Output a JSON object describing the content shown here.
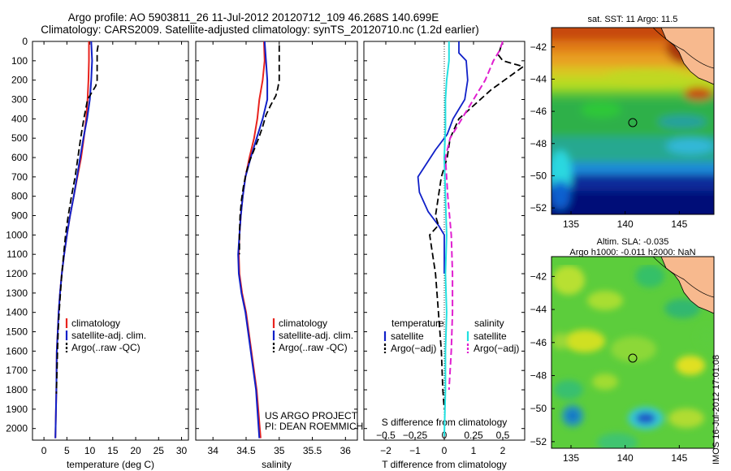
{
  "header": {
    "title_line1": "Argo profile: AO 5903811_26 11-Jul-2012 20120712_109 46.268S 140.699E",
    "title_line2": "Climatology: CARS2009. Satellite-adjusted climatology: synTS_20120710.nc (1.2d earlier)"
  },
  "watermark": "IMOS 16-Jul-2012 17:01:08",
  "colors": {
    "climatology": "#e8231e",
    "satellite": "#1020c8",
    "argo": "#000000",
    "sal_satellite": "#20e0e0",
    "sal_argo": "#e020d0"
  },
  "chart_data": [
    {
      "type": "line",
      "xlabel": "temperature (deg C)",
      "xticks": [
        0,
        5,
        10,
        15,
        20,
        25,
        30
      ],
      "xlim": [
        -2.5,
        31.5
      ],
      "ylim": [
        2060,
        0
      ],
      "yticks": [
        0,
        100,
        200,
        300,
        400,
        500,
        600,
        700,
        800,
        900,
        1000,
        1100,
        1200,
        1300,
        1400,
        1500,
        1600,
        1700,
        1800,
        1900,
        2000
      ],
      "legend": [
        "climatology",
        "satellite-adj. clim.",
        "Argo(..raw -QC)"
      ],
      "series": [
        {
          "name": "climatology",
          "x": [
            9.8,
            9.8,
            9.7,
            9.5,
            9.2,
            8.7,
            8.1,
            7.3,
            6.5,
            5.7,
            5.0,
            4.4,
            3.9,
            3.5,
            3.2,
            3.0,
            2.8,
            2.7,
            2.5
          ],
          "y": [
            0,
            100,
            200,
            300,
            400,
            500,
            600,
            700,
            800,
            900,
            1000,
            1100,
            1200,
            1300,
            1400,
            1500,
            1600,
            1800,
            2050
          ]
        },
        {
          "name": "satellite-adj. clim.",
          "x": [
            10.3,
            10.5,
            10.3,
            10.0,
            9.4,
            8.6,
            7.9,
            7.2,
            6.5,
            5.7,
            5.0,
            4.4,
            3.9,
            3.5,
            3.2,
            3.0,
            2.8,
            2.7,
            2.5
          ],
          "y": [
            0,
            100,
            200,
            300,
            400,
            500,
            600,
            700,
            800,
            900,
            1000,
            1100,
            1200,
            1300,
            1400,
            1500,
            1600,
            1800,
            2050
          ]
        },
        {
          "name": "Argo(..raw -QC)",
          "x": [
            11.8,
            11.6,
            11.6,
            11.6,
            11.6,
            11.3,
            9.5,
            8.7,
            8.0,
            7.4,
            6.8,
            6.0,
            5.3,
            4.7,
            4.3,
            3.9,
            3.6,
            3.3,
            3.1,
            2.95,
            2.85,
            2.7
          ],
          "y": [
            20,
            50,
            100,
            150,
            200,
            230,
            300,
            400,
            500,
            600,
            700,
            800,
            900,
            1000,
            1100,
            1200,
            1300,
            1400,
            1500,
            1600,
            1700,
            1820
          ]
        }
      ]
    },
    {
      "type": "line",
      "xlabel": "salinity",
      "xticks": [
        34,
        34.5,
        35,
        35.5,
        36
      ],
      "xticklabels": [
        "34",
        "34.5",
        "35",
        "35.5",
        "36"
      ],
      "xlim": [
        33.74,
        36.18
      ],
      "ylim": [
        2060,
        0
      ],
      "legend": [
        "climatology",
        "satellite-adj. clim.",
        "Argo(..raw -QC)"
      ],
      "annotation": [
        "US ARGO PROJECT",
        "PI: DEAN ROEMMICH"
      ],
      "series": [
        {
          "name": "climatology",
          "x": [
            34.77,
            34.78,
            34.75,
            34.7,
            34.67,
            34.62,
            34.55,
            34.49,
            34.45,
            34.42,
            34.4,
            34.39,
            34.4,
            34.44,
            34.5,
            34.58,
            34.66,
            34.72
          ],
          "y": [
            0,
            100,
            200,
            300,
            400,
            500,
            600,
            700,
            800,
            900,
            1000,
            1100,
            1200,
            1300,
            1400,
            1600,
            1800,
            2050
          ]
        },
        {
          "name": "satellite-adj. clim.",
          "x": [
            34.78,
            34.8,
            34.82,
            34.82,
            34.75,
            34.66,
            34.57,
            34.49,
            34.45,
            34.42,
            34.4,
            34.38,
            34.39,
            34.43,
            34.49,
            34.57,
            34.65,
            34.7
          ],
          "y": [
            0,
            100,
            200,
            300,
            400,
            500,
            600,
            700,
            800,
            900,
            1000,
            1100,
            1200,
            1300,
            1400,
            1600,
            1800,
            2050
          ]
        },
        {
          "name": "Argo(..raw -QC)",
          "x": [
            35.0,
            35.0,
            35.0,
            34.98,
            34.95,
            34.87,
            34.8,
            34.75,
            34.69,
            34.62,
            34.55,
            34.5,
            34.46,
            34.43,
            34.41,
            34.4,
            34.4
          ],
          "y": [
            20,
            100,
            200,
            240,
            280,
            330,
            380,
            440,
            500,
            560,
            620,
            680,
            750,
            820,
            900,
            1000,
            1100
          ]
        }
      ]
    },
    {
      "type": "line",
      "xlabel": "T difference from climatology",
      "xticks": [
        -2,
        -1,
        0,
        1,
        2
      ],
      "xticklabels": [
        "−2",
        "−1",
        "0",
        "1",
        "2"
      ],
      "x2label": "S difference from climatology",
      "x2ticks": [
        -0.5,
        -0.25,
        0,
        0.25,
        0.5
      ],
      "x2ticklabels": [
        "−0.5",
        "−0.25",
        "0",
        "0.25",
        "0.5"
      ],
      "xlim": [
        -2.75,
        2.75
      ],
      "ylim": [
        2060,
        0
      ],
      "legend": [
        "temperature",
        "satellite",
        "Argo(−adj)",
        "salinity",
        "satellite",
        "Argo(−adj)"
      ],
      "series": [
        {
          "name": "T satellite",
          "x": [
            0.5,
            0.5,
            0.75,
            0.8,
            0.7,
            0.5,
            0.3,
            0.1,
            -0.3,
            -0.9,
            -0.85,
            -0.55,
            -0.2,
            0,
            0,
            0
          ],
          "y": [
            0,
            60,
            100,
            200,
            300,
            350,
            400,
            480,
            560,
            700,
            780,
            880,
            950,
            1000,
            1100,
            1200
          ]
        },
        {
          "name": "T Argo(−adj)",
          "x": [
            1.95,
            1.85,
            2.0,
            2.7,
            1.6,
            0.5,
            0.2,
            0.1,
            -0.1,
            -0.2,
            -0.3,
            -0.2,
            -0.5,
            -0.4,
            -0.3,
            -0.2,
            -0.1,
            -0.05,
            0
          ],
          "y": [
            20,
            70,
            100,
            130,
            250,
            400,
            500,
            600,
            700,
            800,
            900,
            950,
            1000,
            1100,
            1200,
            1400,
            1600,
            1800,
            1900
          ]
        },
        {
          "name": "S satellite",
          "x": [
            0.04,
            0.04,
            0.02,
            0.01,
            0.01,
            0,
            0.01,
            0.02,
            0.01,
            0.02,
            0.01,
            0.01,
            0
          ],
          "y": [
            0,
            100,
            200,
            300,
            450,
            600,
            800,
            1000,
            1200,
            1400,
            1600,
            1800,
            2040
          ]
        },
        {
          "name": "S Argo(−adj)",
          "x": [
            0.5,
            0.47,
            0.42,
            0.35,
            0.25,
            0.15,
            0.05,
            0.01,
            0.03,
            0.06,
            0.07,
            0.07,
            0.06,
            0.04
          ],
          "y": [
            0,
            50,
            100,
            200,
            300,
            400,
            500,
            600,
            800,
            1000,
            1200,
            1400,
            1600,
            1800
          ]
        }
      ]
    },
    {
      "type": "heatmap",
      "title": "sat. SST: 11 Argo: 11.5",
      "xticks": [
        135,
        140,
        145
      ],
      "xlim": [
        133.2,
        148.2
      ],
      "yticks": [
        -42,
        -44,
        -46,
        -48,
        -50,
        -52
      ],
      "ylim": [
        -52.4,
        -40.8
      ],
      "marker": {
        "lon": 140.699,
        "lat": -46.268
      }
    },
    {
      "type": "heatmap",
      "title": "Altim. SLA: -0.035",
      "subtitle": "Argo h1000: -0.011 h2000: NaN",
      "xticks": [
        135,
        140,
        145
      ],
      "xlim": [
        133.2,
        148.2
      ],
      "yticks": [
        -42,
        -44,
        -46,
        -48,
        -50,
        -52
      ],
      "ylim": [
        -52.4,
        -40.8
      ],
      "marker": {
        "lon": 140.699,
        "lat": -46.268
      }
    }
  ]
}
